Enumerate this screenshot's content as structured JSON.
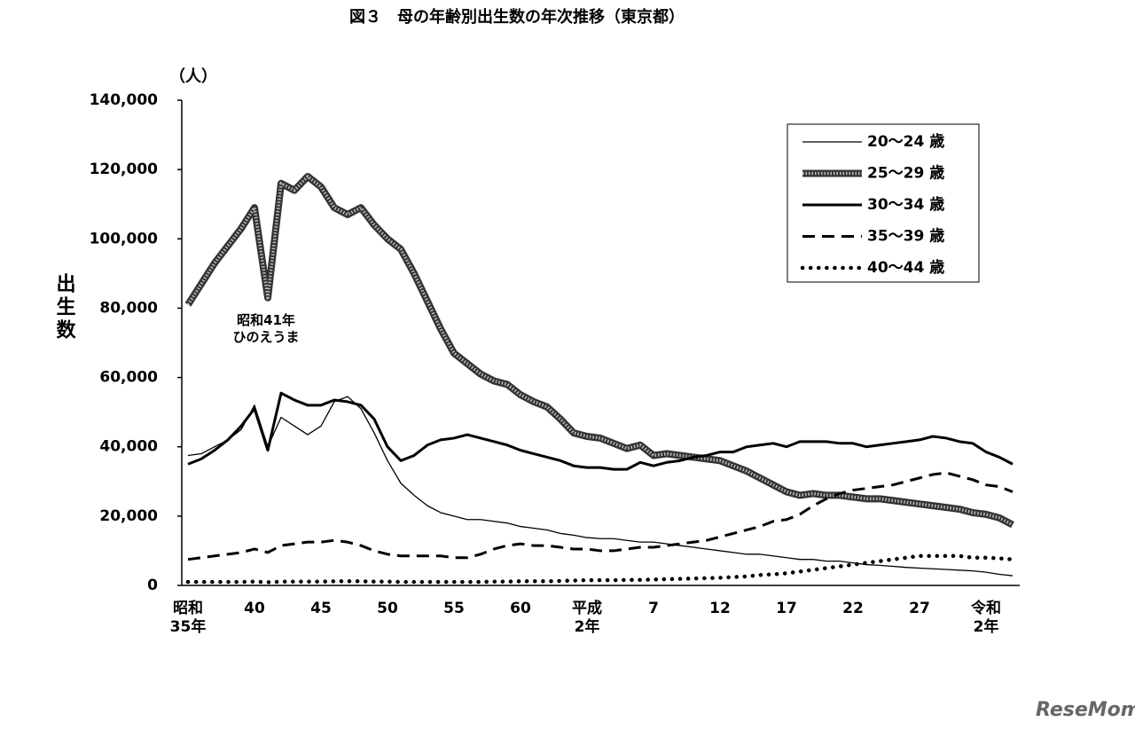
{
  "chart_data": {
    "type": "line",
    "title": "図３　母の年齢別出生数の年次推移（東京都）",
    "y_unit": "（人）",
    "y_label": "出生数",
    "annotation": "昭和41年\nひのえうま",
    "watermark": "ReseMom",
    "categories": [
      "昭和\n35年",
      null,
      null,
      null,
      null,
      "40",
      null,
      null,
      null,
      null,
      "45",
      null,
      null,
      null,
      null,
      "50",
      null,
      null,
      null,
      null,
      "55",
      null,
      null,
      null,
      null,
      "60",
      null,
      null,
      null,
      null,
      "平成\n2年",
      null,
      null,
      null,
      null,
      "7",
      null,
      null,
      null,
      null,
      "12",
      null,
      null,
      null,
      null,
      "17",
      null,
      null,
      null,
      null,
      "22",
      null,
      null,
      null,
      null,
      "27",
      null,
      null,
      null,
      null,
      "令和\n2年",
      null,
      null
    ],
    "ylim": [
      0,
      140000
    ],
    "yticks": [
      0,
      {
        "value": 20000,
        "label": "20,000"
      },
      {
        "value": 40000,
        "label": "40,000"
      },
      {
        "value": 60000,
        "label": "60,000"
      },
      {
        "value": 80000,
        "label": "80,000"
      },
      {
        "value": 100000,
        "label": "100,000"
      },
      {
        "value": 120000,
        "label": "120,000"
      },
      {
        "value": 140000,
        "label": "140,000"
      }
    ],
    "legend": "upper right",
    "series": [
      {
        "name": "20～24 歳",
        "color": "#000000",
        "style": "thin",
        "values": [
          37500,
          38000,
          40000,
          42000,
          45000,
          52000,
          40000,
          48500,
          46000,
          43500,
          46000,
          53000,
          54500,
          51000,
          44000,
          36000,
          29500,
          26000,
          23000,
          21000,
          20000,
          19000,
          19000,
          18500,
          18000,
          17000,
          16500,
          16000,
          15000,
          14500,
          13800,
          13500,
          13500,
          13000,
          12500,
          12500,
          12000,
          11500,
          11000,
          10500,
          10000,
          9500,
          9000,
          9000,
          8500,
          8000,
          7500,
          7500,
          7000,
          7000,
          6500,
          6000,
          5800,
          5500,
          5200,
          5000,
          4800,
          4600,
          4400,
          4200,
          3800,
          3200,
          2800
        ]
      },
      {
        "name": "25～29 歳",
        "color": "#333333",
        "style": "hatched",
        "values": [
          81000,
          87000,
          93000,
          98000,
          103000,
          109000,
          83000,
          116000,
          114000,
          118000,
          115000,
          109000,
          107000,
          109000,
          104000,
          100000,
          97000,
          90000,
          82000,
          74000,
          67000,
          64000,
          61000,
          59000,
          58000,
          55000,
          53000,
          51500,
          48000,
          44000,
          43000,
          42500,
          41000,
          39500,
          40500,
          37500,
          38000,
          37500,
          37000,
          36500,
          36000,
          34500,
          33000,
          31000,
          29000,
          27000,
          26000,
          26500,
          26000,
          26000,
          25500,
          25000,
          25000,
          24500,
          24000,
          23500,
          23000,
          22500,
          22000,
          21000,
          20500,
          19500,
          17500
        ]
      },
      {
        "name": "30～34 歳",
        "color": "#000000",
        "style": "solid",
        "values": [
          35000,
          36500,
          39000,
          42000,
          46000,
          51000,
          39000,
          55500,
          53500,
          52000,
          52000,
          53500,
          53000,
          52000,
          48000,
          40000,
          36000,
          37500,
          40500,
          42000,
          42500,
          43500,
          42500,
          41500,
          40500,
          39000,
          38000,
          37000,
          36000,
          34500,
          34000,
          34000,
          33500,
          33500,
          35500,
          34500,
          35500,
          36000,
          37000,
          37500,
          38500,
          38500,
          40000,
          40500,
          41000,
          40000,
          41500,
          41500,
          41500,
          41000,
          41000,
          40000,
          40500,
          41000,
          41500,
          42000,
          43000,
          42500,
          41500,
          41000,
          38500,
          37000,
          35000
        ]
      },
      {
        "name": "35～39 歳",
        "color": "#000000",
        "style": "dashed",
        "values": [
          7500,
          8000,
          8500,
          9000,
          9500,
          10500,
          9500,
          11500,
          12000,
          12500,
          12500,
          13000,
          12500,
          11500,
          10000,
          9000,
          8500,
          8500,
          8500,
          8500,
          8000,
          8000,
          9000,
          10500,
          11500,
          12000,
          11500,
          11500,
          11000,
          10500,
          10500,
          10000,
          10000,
          10500,
          11000,
          11000,
          11500,
          12000,
          12500,
          13000,
          14000,
          15000,
          16000,
          17000,
          18500,
          19000,
          20500,
          23000,
          25000,
          26500,
          27500,
          28000,
          28500,
          29000,
          30000,
          31000,
          32000,
          32500,
          31500,
          30500,
          29000,
          28500,
          27000
        ]
      },
      {
        "name": "40～44 歳",
        "color": "#000000",
        "style": "dotted",
        "values": [
          1000,
          1000,
          1000,
          1000,
          1000,
          1100,
          900,
          1100,
          1100,
          1100,
          1100,
          1200,
          1200,
          1200,
          1100,
          1100,
          1000,
          1000,
          1000,
          1000,
          1000,
          1000,
          1000,
          1100,
          1100,
          1200,
          1200,
          1200,
          1300,
          1400,
          1500,
          1500,
          1500,
          1600,
          1600,
          1700,
          1800,
          1900,
          2000,
          2100,
          2200,
          2400,
          2600,
          3000,
          3200,
          3500,
          4000,
          4500,
          5000,
          5500,
          6000,
          6500,
          7000,
          7500,
          8000,
          8500,
          8500,
          8500,
          8500,
          8000,
          8000,
          7800,
          7500
        ]
      }
    ]
  }
}
